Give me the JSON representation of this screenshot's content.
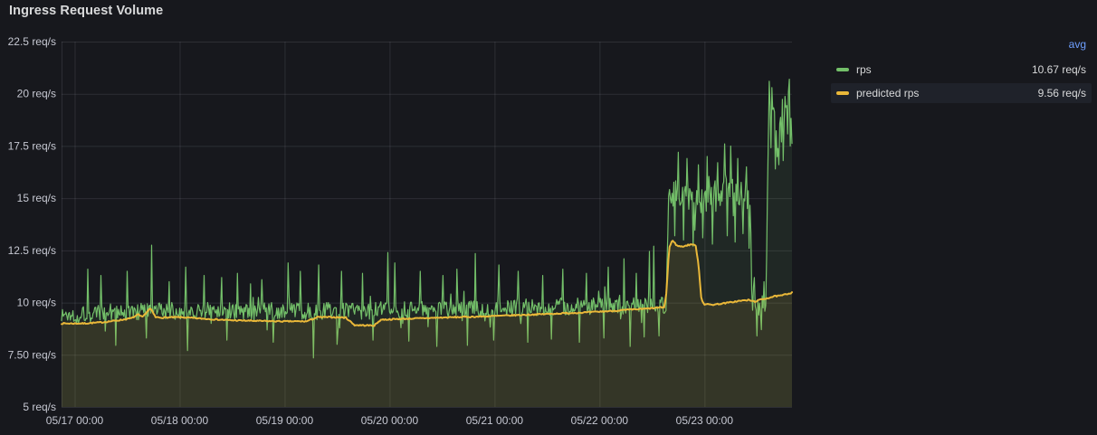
{
  "panel": {
    "title": "Ingress Request Volume"
  },
  "legend": {
    "header": "avg",
    "items": [
      {
        "label": "rps",
        "avg": "10.67 req/s"
      },
      {
        "label": "predicted rps",
        "avg": "9.56 req/s"
      }
    ]
  },
  "colors": {
    "background": "#17181d",
    "grid": "rgba(204,204,220,0.12)",
    "axis_text": "#c6c8d2",
    "title_text": "#d8d9da",
    "legend_text": "#d8d9da",
    "avg_link": "#6e9fff",
    "legend_highlight": "#1f222a",
    "series_green": "#73bf69",
    "series_yellow": "#eab839"
  },
  "chart_data": {
    "type": "line",
    "title": "Ingress Request Volume",
    "grid": true,
    "legend_position": "right",
    "y_unit": "req/s",
    "y_range": [
      5,
      22.5
    ],
    "y_ticks": [
      {
        "value": 22.5,
        "label": "22.5 req/s"
      },
      {
        "value": 20,
        "label": "20 req/s"
      },
      {
        "value": 17.5,
        "label": "17.5 req/s"
      },
      {
        "value": 15,
        "label": "15 req/s"
      },
      {
        "value": 12.5,
        "label": "12.5 req/s"
      },
      {
        "value": 10,
        "label": "10 req/s"
      },
      {
        "value": 7.5,
        "label": "7.50 req/s"
      },
      {
        "value": 5,
        "label": "5 req/s"
      }
    ],
    "x_range_hours": [
      0,
      167
    ],
    "x_ticks": [
      {
        "hour": 3,
        "label": "05/17 00:00"
      },
      {
        "hour": 27,
        "label": "05/18 00:00"
      },
      {
        "hour": 51,
        "label": "05/19 00:00"
      },
      {
        "hour": 75,
        "label": "05/20 00:00"
      },
      {
        "hour": 99,
        "label": "05/21 00:00"
      },
      {
        "hour": 123,
        "label": "05/22 00:00"
      },
      {
        "hour": 147,
        "label": "05/23 00:00"
      }
    ],
    "series": [
      {
        "name": "rps",
        "color": "#73bf69",
        "avg": "10.67 req/s",
        "line_width": 1.2,
        "fill_opacity": 0.1,
        "seed": 1337,
        "sample_step": 0.2,
        "spike_prob": 0.07,
        "spike_gain": 2.3,
        "noise_amp": [
          [
            0,
            0.42
          ],
          [
            138.2,
            0.42
          ],
          [
            138.6,
            0.75
          ],
          [
            157.5,
            0.75
          ],
          [
            158,
            0.5
          ],
          [
            161,
            0.5
          ],
          [
            161.5,
            1.35
          ],
          [
            167,
            1.35
          ]
        ],
        "anchors": [
          [
            0,
            9.4
          ],
          [
            12,
            9.5
          ],
          [
            24,
            9.6
          ],
          [
            36,
            9.62
          ],
          [
            48,
            9.58
          ],
          [
            60,
            9.6
          ],
          [
            72,
            9.62
          ],
          [
            84,
            9.68
          ],
          [
            96,
            9.72
          ],
          [
            108,
            9.78
          ],
          [
            120,
            9.82
          ],
          [
            130,
            9.88
          ],
          [
            138.2,
            9.9
          ],
          [
            138.7,
            15.1
          ],
          [
            140,
            15.3
          ],
          [
            144,
            15.15
          ],
          [
            148,
            15.3
          ],
          [
            152,
            15.45
          ],
          [
            156,
            15.3
          ],
          [
            157.4,
            15.2
          ],
          [
            157.9,
            9.95
          ],
          [
            159.5,
            9.8
          ],
          [
            161.1,
            9.7
          ],
          [
            161.6,
            18.4
          ],
          [
            162.5,
            18.8
          ],
          [
            163.5,
            17.7
          ],
          [
            164.5,
            18.4
          ],
          [
            165.5,
            18.6
          ],
          [
            166.2,
            18.9
          ],
          [
            167,
            18.5
          ]
        ],
        "spikes": [
          [
            6,
            11.6
          ],
          [
            9.1,
            11.3
          ],
          [
            12.4,
            7.95
          ],
          [
            14.9,
            11.5
          ],
          [
            19.4,
            8.3
          ],
          [
            20.7,
            12.75
          ],
          [
            24.6,
            11.0
          ],
          [
            28.3,
            11.7
          ],
          [
            28.8,
            7.7
          ],
          [
            32.5,
            11.3
          ],
          [
            36.6,
            11.2
          ],
          [
            37.7,
            8.2
          ],
          [
            40.1,
            11.4
          ],
          [
            43.2,
            10.9
          ],
          [
            45.9,
            11.1
          ],
          [
            48.4,
            8.1
          ],
          [
            51.7,
            11.9
          ],
          [
            54.6,
            11.5
          ],
          [
            57.5,
            7.35
          ],
          [
            58.8,
            11.8
          ],
          [
            62.9,
            8.0
          ],
          [
            64.1,
            11.5
          ],
          [
            68.7,
            11.4
          ],
          [
            71.2,
            8.2
          ],
          [
            74.5,
            12.4
          ],
          [
            76.3,
            11.9
          ],
          [
            79.4,
            8.15
          ],
          [
            82.1,
            11.5
          ],
          [
            85.7,
            7.9
          ],
          [
            87.3,
            11.3
          ],
          [
            90.4,
            11.6
          ],
          [
            92.7,
            7.95
          ],
          [
            94.6,
            12.35
          ],
          [
            98.7,
            8.2
          ],
          [
            100.1,
            11.8
          ],
          [
            104.3,
            11.5
          ],
          [
            106.6,
            8.1
          ],
          [
            110.1,
            11.3
          ],
          [
            112.1,
            8.25
          ],
          [
            114.6,
            11.6
          ],
          [
            118.3,
            8.1
          ],
          [
            120,
            11.4
          ],
          [
            124,
            8.3
          ],
          [
            125,
            11.7
          ],
          [
            128.7,
            12.1
          ],
          [
            130.1,
            7.9
          ],
          [
            131.4,
            11.4
          ],
          [
            133.2,
            8.35
          ],
          [
            134.3,
            12.45
          ],
          [
            135.3,
            12.7
          ],
          [
            136.5,
            8.4
          ],
          [
            140.2,
            13.2
          ],
          [
            141,
            17.2
          ],
          [
            142.2,
            13.0
          ],
          [
            143,
            16.9
          ],
          [
            144.3,
            12.7
          ],
          [
            145.6,
            16.6
          ],
          [
            146.5,
            13.1
          ],
          [
            147.6,
            17.0
          ],
          [
            148.8,
            12.8
          ],
          [
            150,
            16.7
          ],
          [
            151.5,
            17.6
          ],
          [
            152.2,
            13.2
          ],
          [
            152.9,
            17.5
          ],
          [
            154,
            12.9
          ],
          [
            154.7,
            16.9
          ],
          [
            155.8,
            13.3
          ],
          [
            156.6,
            16.5
          ],
          [
            157.2,
            12.6
          ],
          [
            158.4,
            11.2
          ],
          [
            159.1,
            8.4
          ],
          [
            160,
            8.7
          ],
          [
            160.6,
            11.0
          ],
          [
            161.8,
            20.6
          ],
          [
            162.3,
            20.3
          ],
          [
            163.2,
            16.4
          ],
          [
            164,
            16.6
          ],
          [
            165,
            16.8
          ],
          [
            166.3,
            20.7
          ]
        ]
      },
      {
        "name": "predicted rps",
        "color": "#eab839",
        "avg": "9.56 req/s",
        "line_width": 2,
        "fill_opacity": 0.1,
        "seed": 7,
        "sample_step": 0.25,
        "noise_amp": [
          [
            0,
            0.03
          ],
          [
            167,
            0.03
          ]
        ],
        "anchors": [
          [
            0,
            9.0
          ],
          [
            5,
            9.0
          ],
          [
            9,
            9.05
          ],
          [
            13,
            9.15
          ],
          [
            16,
            9.25
          ],
          [
            17.5,
            9.42
          ],
          [
            18.5,
            9.3
          ],
          [
            19.5,
            9.55
          ],
          [
            20.3,
            9.72
          ],
          [
            21.5,
            9.3
          ],
          [
            23,
            9.28
          ],
          [
            27,
            9.3
          ],
          [
            33,
            9.22
          ],
          [
            39,
            9.15
          ],
          [
            45,
            9.12
          ],
          [
            51,
            9.1
          ],
          [
            56,
            9.1
          ],
          [
            58.5,
            9.3
          ],
          [
            62,
            9.3
          ],
          [
            65,
            9.28
          ],
          [
            67,
            8.92
          ],
          [
            71.5,
            8.9
          ],
          [
            73,
            9.18
          ],
          [
            78,
            9.22
          ],
          [
            84,
            9.26
          ],
          [
            90,
            9.3
          ],
          [
            96,
            9.33
          ],
          [
            102,
            9.38
          ],
          [
            108,
            9.43
          ],
          [
            114,
            9.48
          ],
          [
            120,
            9.53
          ],
          [
            126,
            9.6
          ],
          [
            130,
            9.66
          ],
          [
            134,
            9.71
          ],
          [
            137.8,
            9.78
          ],
          [
            138.3,
            10.5
          ],
          [
            138.9,
            12.6
          ],
          [
            139.7,
            13.0
          ],
          [
            140.7,
            12.72
          ],
          [
            141.8,
            12.68
          ],
          [
            143,
            12.74
          ],
          [
            144.2,
            12.8
          ],
          [
            145,
            12.7
          ],
          [
            145.6,
            11.9
          ],
          [
            146.3,
            10.15
          ],
          [
            147,
            9.92
          ],
          [
            149,
            9.9
          ],
          [
            152,
            9.98
          ],
          [
            155,
            10.08
          ],
          [
            157,
            10.12
          ],
          [
            158.5,
            10.05
          ],
          [
            160,
            10.15
          ],
          [
            161.5,
            10.22
          ],
          [
            163,
            10.3
          ],
          [
            164.5,
            10.33
          ],
          [
            166,
            10.42
          ],
          [
            167,
            10.48
          ]
        ],
        "spikes": []
      }
    ]
  }
}
